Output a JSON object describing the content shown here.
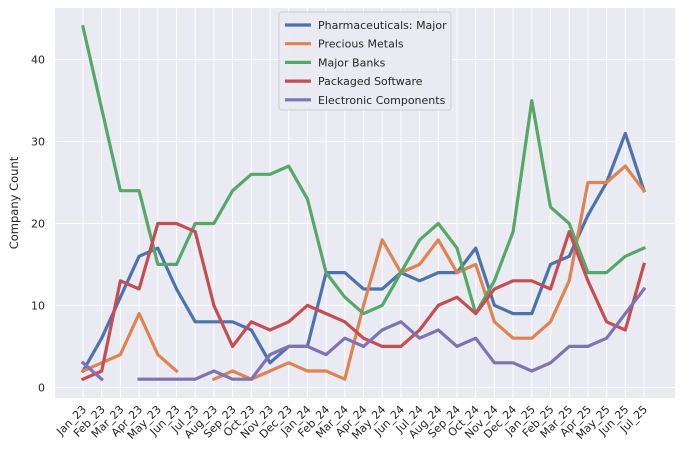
{
  "chart_data": {
    "type": "line",
    "title": "",
    "xlabel": "",
    "ylabel": "Company Count",
    "ylim": [
      -1.3,
      46.3
    ],
    "yticks": [
      0,
      10,
      20,
      30,
      40
    ],
    "grid": true,
    "legend_position": "top-center",
    "categories": [
      "Jan_23",
      "Feb_23",
      "Mar_23",
      "Apr_23",
      "May_23",
      "Jun_23",
      "Jul_23",
      "Aug_23",
      "Sep_23",
      "Oct_23",
      "Nov_23",
      "Dec_23",
      "Jan_24",
      "Feb_24",
      "Mar_24",
      "Apr_24",
      "May_24",
      "Jun_24",
      "Jul_24",
      "Aug_24",
      "Sep_24",
      "Oct_24",
      "Nov_24",
      "Dec_24",
      "Jan_25",
      "Feb_25",
      "Mar_25",
      "Apr_25",
      "May_25",
      "Jun_25",
      "Jul_25"
    ],
    "series": [
      {
        "name": "Pharmaceuticals: Major",
        "color": "#4c72b0",
        "values": [
          2,
          6,
          11,
          16,
          17,
          12,
          8,
          8,
          8,
          7,
          3,
          5,
          5,
          14,
          14,
          12,
          12,
          14,
          13,
          14,
          14,
          17,
          10,
          9,
          9,
          15,
          16,
          21,
          25,
          31,
          24
        ]
      },
      {
        "name": "Precious Metals",
        "color": "#dd8452",
        "values": [
          2,
          3,
          4,
          9,
          4,
          2,
          null,
          1,
          2,
          1,
          2,
          3,
          2,
          2,
          1,
          10,
          18,
          14,
          15,
          18,
          14,
          15,
          8,
          6,
          6,
          8,
          13,
          25,
          25,
          27,
          24
        ]
      },
      {
        "name": "Major Banks",
        "color": "#55a868",
        "values": [
          44,
          34,
          24,
          24,
          15,
          15,
          20,
          20,
          24,
          26,
          26,
          27,
          23,
          14,
          11,
          9,
          10,
          14,
          18,
          20,
          17,
          9,
          13,
          19,
          35,
          22,
          20,
          14,
          14,
          16,
          17
        ]
      },
      {
        "name": "Packaged Software",
        "color": "#c44e52",
        "values": [
          1,
          2,
          13,
          12,
          20,
          20,
          19,
          10,
          5,
          8,
          7,
          8,
          10,
          9,
          8,
          6,
          5,
          5,
          7,
          10,
          11,
          9,
          12,
          13,
          13,
          12,
          19,
          13,
          8,
          7,
          15
        ]
      },
      {
        "name": "Electronic Components",
        "color": "#8172b3",
        "values": [
          3,
          1,
          null,
          1,
          1,
          1,
          1,
          2,
          1,
          1,
          4,
          5,
          5,
          4,
          6,
          5,
          7,
          8,
          6,
          7,
          5,
          6,
          3,
          3,
          2,
          3,
          5,
          5,
          6,
          9,
          12
        ]
      }
    ]
  }
}
